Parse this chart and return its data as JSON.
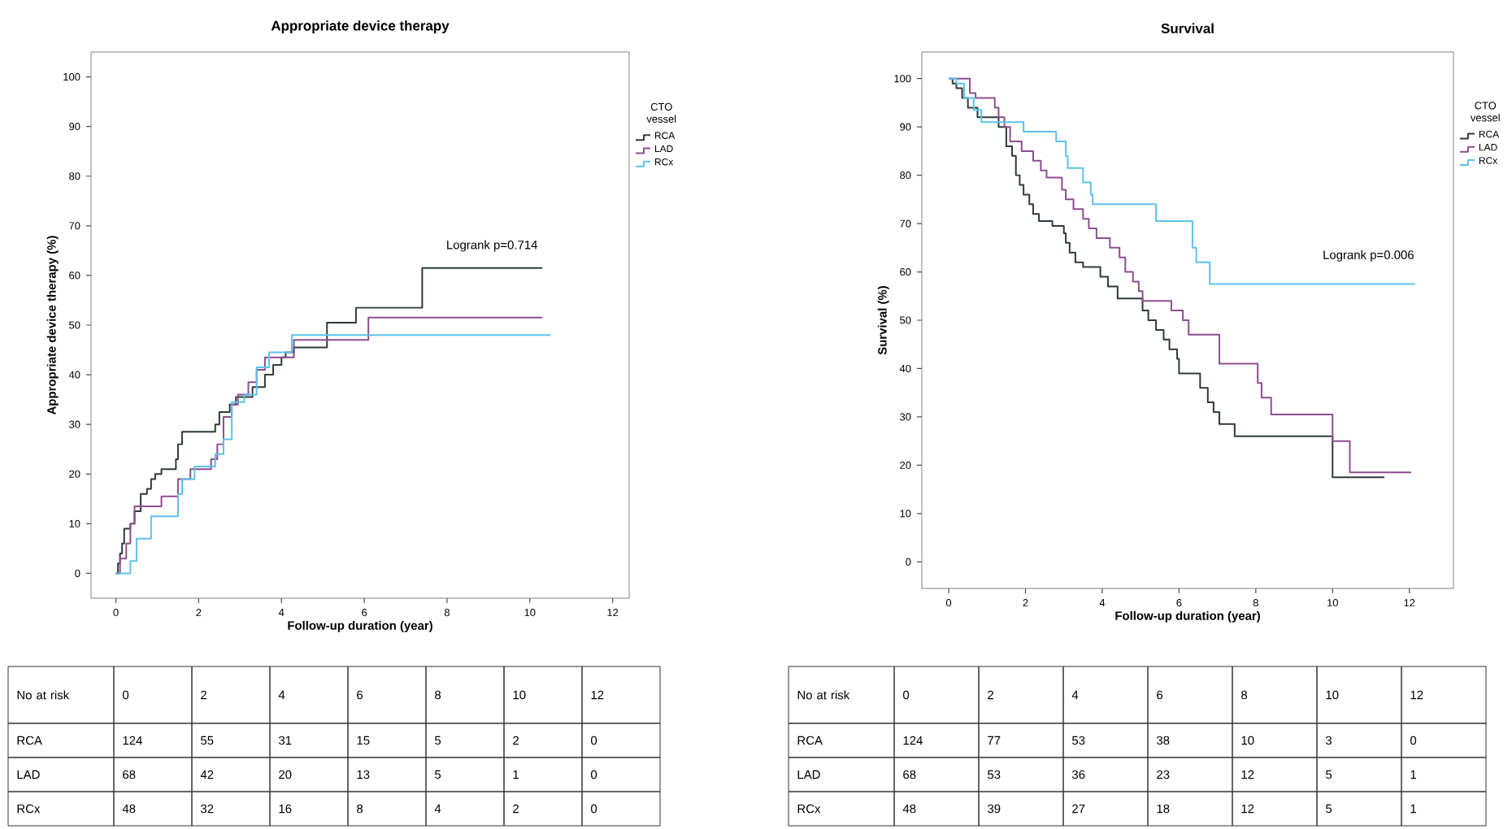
{
  "chart_data": [
    {
      "type": "step",
      "title": "Appropriate device therapy",
      "xlabel": "Follow-up duration (year)",
      "ylabel": "Appropriate device therapy (%)",
      "legend_title": "CTO vessel",
      "legend": "right",
      "grid": false,
      "xlim": [
        -0.6,
        12.4
      ],
      "ylim": [
        -5,
        105
      ],
      "xticks": [
        0,
        2,
        4,
        6,
        8,
        10,
        12
      ],
      "yticks": [
        0,
        10,
        20,
        30,
        40,
        50,
        60,
        70,
        80,
        90,
        100
      ],
      "series": [
        {
          "name": "RCA",
          "color": "#2e3b3b",
          "x": [
            0,
            0.05,
            0.1,
            0.15,
            0.2,
            0.35,
            0.45,
            0.6,
            0.75,
            0.85,
            0.95,
            1.1,
            1.45,
            1.5,
            1.6,
            2.4,
            2.5,
            2.75,
            2.9,
            3.3,
            3.6,
            3.8,
            4.0,
            4.1,
            4.3,
            5.1,
            5.8,
            7.4,
            10.3
          ],
          "values": [
            0,
            2,
            4,
            6,
            9,
            10,
            12.5,
            16,
            17,
            19,
            20,
            21,
            23,
            26,
            28.5,
            30,
            32.5,
            34,
            35.5,
            37.5,
            40,
            42,
            43.5,
            44.5,
            45.5,
            50.5,
            53.5,
            61.5,
            61.5
          ]
        },
        {
          "name": "LAD",
          "color": "#8e4d90",
          "x": [
            0,
            0.1,
            0.25,
            0.35,
            0.45,
            1.1,
            1.5,
            1.8,
            2.3,
            2.45,
            2.6,
            2.8,
            2.95,
            3.2,
            3.4,
            3.6,
            4.3,
            6.1,
            10.3
          ],
          "values": [
            0,
            3,
            6,
            10,
            13.5,
            15.5,
            19,
            21,
            23,
            26,
            31.5,
            34,
            36,
            38.5,
            41,
            43.5,
            47,
            51.5,
            51.5
          ]
        },
        {
          "name": "RCx",
          "color": "#5cc3ea",
          "x": [
            0,
            0.35,
            0.5,
            0.85,
            1.5,
            1.6,
            1.9,
            2.4,
            2.6,
            2.8,
            3.1,
            3.4,
            3.7,
            4.25,
            10.5
          ],
          "values": [
            0,
            2.5,
            7,
            11.5,
            16,
            19,
            21.5,
            24,
            27,
            34.5,
            36,
            41.5,
            44.5,
            48,
            48
          ]
        }
      ],
      "annotations": [
        "Logrank p=0.714",
        "No at risk",
        "0",
        "2",
        "4",
        "6",
        "8",
        "10",
        "12",
        "RCA",
        "124",
        "55",
        "31",
        "15",
        "5",
        "2",
        "0",
        "LAD",
        "68",
        "42",
        "20",
        "13",
        "5",
        "1",
        "0",
        "RCx",
        "48",
        "32",
        "16",
        "8",
        "4",
        "2",
        "0"
      ]
    },
    {
      "type": "step",
      "title": "Survival",
      "xlabel": "Follow-up duration (year)",
      "ylabel": "Survival (%)",
      "legend_title": "CTO vessel",
      "legend": "right",
      "grid": false,
      "xlim": [
        -0.7,
        13.15
      ],
      "ylim": [
        -5.5,
        105.5
      ],
      "xticks": [
        0,
        2,
        4,
        6,
        8,
        10,
        12
      ],
      "yticks": [
        0,
        10,
        20,
        30,
        40,
        50,
        60,
        70,
        80,
        90,
        100
      ],
      "series": [
        {
          "name": "RCA",
          "color": "#2e3b3b",
          "x": [
            0,
            0.1,
            0.2,
            0.35,
            0.5,
            0.75,
            1.3,
            1.5,
            1.65,
            1.75,
            1.85,
            1.95,
            2.1,
            2.2,
            2.35,
            2.7,
            3.0,
            3.05,
            3.15,
            3.3,
            3.5,
            3.95,
            4.15,
            4.4,
            5.05,
            5.2,
            5.4,
            5.6,
            5.75,
            5.95,
            6.0,
            6.55,
            6.75,
            6.9,
            7.05,
            7.45,
            10.0,
            11.35
          ],
          "values": [
            100,
            99,
            98,
            96,
            94,
            92,
            90,
            86,
            84,
            80,
            78,
            76,
            74,
            72,
            70.5,
            69.5,
            68,
            66,
            64,
            62,
            61,
            59,
            57,
            54.5,
            52,
            50,
            48,
            46,
            44,
            42,
            39,
            36,
            33,
            31,
            28.5,
            26,
            17.5,
            17.5
          ]
        },
        {
          "name": "LAD",
          "color": "#8e4d90",
          "x": [
            0,
            0.55,
            0.7,
            1.2,
            1.3,
            1.45,
            1.6,
            1.9,
            2.2,
            2.4,
            2.55,
            2.95,
            3.05,
            3.25,
            3.5,
            3.65,
            3.85,
            4.2,
            4.45,
            4.6,
            4.8,
            4.95,
            5.05,
            5.8,
            6.1,
            6.25,
            7.05,
            8.05,
            8.15,
            8.4,
            10.0,
            10.45,
            12.05
          ],
          "values": [
            100,
            97,
            96,
            94,
            92,
            90,
            87,
            85,
            83,
            81,
            79.5,
            77,
            75,
            73,
            71,
            69,
            67,
            65,
            63,
            60,
            58,
            56,
            54,
            52,
            50,
            47,
            41,
            37,
            34,
            30.5,
            25,
            18.5,
            18.5
          ]
        },
        {
          "name": "RCx",
          "color": "#5cc3ea",
          "x": [
            0,
            0.2,
            0.4,
            0.65,
            0.85,
            1.95,
            2.8,
            3.05,
            3.1,
            3.5,
            3.7,
            3.75,
            5.4,
            6.35,
            6.45,
            6.8,
            12.15
          ],
          "values": [
            100,
            99,
            96,
            93.5,
            91,
            89,
            87,
            84,
            81.5,
            78.5,
            76,
            74,
            70.5,
            65,
            62,
            57.5,
            57.5
          ]
        }
      ],
      "annotations": [
        "Logrank p=0.006",
        "No at risk",
        "0",
        "2",
        "4",
        "6",
        "8",
        "10",
        "12",
        "RCA",
        "124",
        "77",
        "53",
        "38",
        "10",
        "3",
        "0",
        "LAD",
        "68",
        "53",
        "36",
        "23",
        "12",
        "5",
        "1",
        "RCx",
        "48",
        "39",
        "27",
        "18",
        "12",
        "5",
        "1"
      ]
    }
  ]
}
